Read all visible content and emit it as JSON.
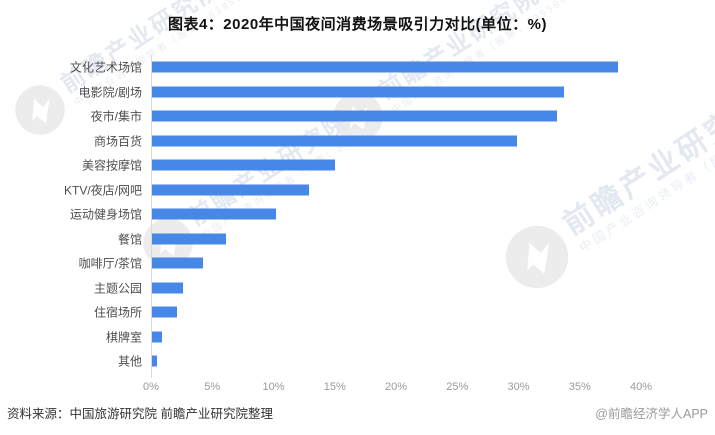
{
  "title": "图表4：2020年中国夜间消费场景吸引力对比(单位：%)",
  "chart_data": {
    "type": "bar",
    "orientation": "horizontal",
    "title": "图表4：2020年中国夜间消费场景吸引力对比(单位：%)",
    "categories": [
      "文化艺术场馆",
      "电影院/剧场",
      "夜市/集市",
      "商场百货",
      "美容按摩馆",
      "KTV/夜店/网吧",
      "运动健身场馆",
      "餐馆",
      "咖啡厅/茶馆",
      "主题公园",
      "住宿场所",
      "棋牌室",
      "其他"
    ],
    "values": [
      38.0,
      33.6,
      33.1,
      29.8,
      14.9,
      12.8,
      10.1,
      6.0,
      4.2,
      2.5,
      2.0,
      0.8,
      0.4
    ],
    "unit": "%",
    "xlim": [
      0,
      40
    ],
    "x_ticks": [
      "0%",
      "5%",
      "10%",
      "15%",
      "20%",
      "25%",
      "30%",
      "35%",
      "40%"
    ],
    "bar_color": "#4687e8",
    "grid": false,
    "legend": false
  },
  "footer": {
    "source": "资料来源：中国旅游研究院 前瞻产业研究院整理",
    "credit": "@前瞻经济学人APP"
  },
  "watermark": {
    "main": "前瞻产业研究院",
    "sub": "中国产业咨询领导者（股票：839599）"
  }
}
